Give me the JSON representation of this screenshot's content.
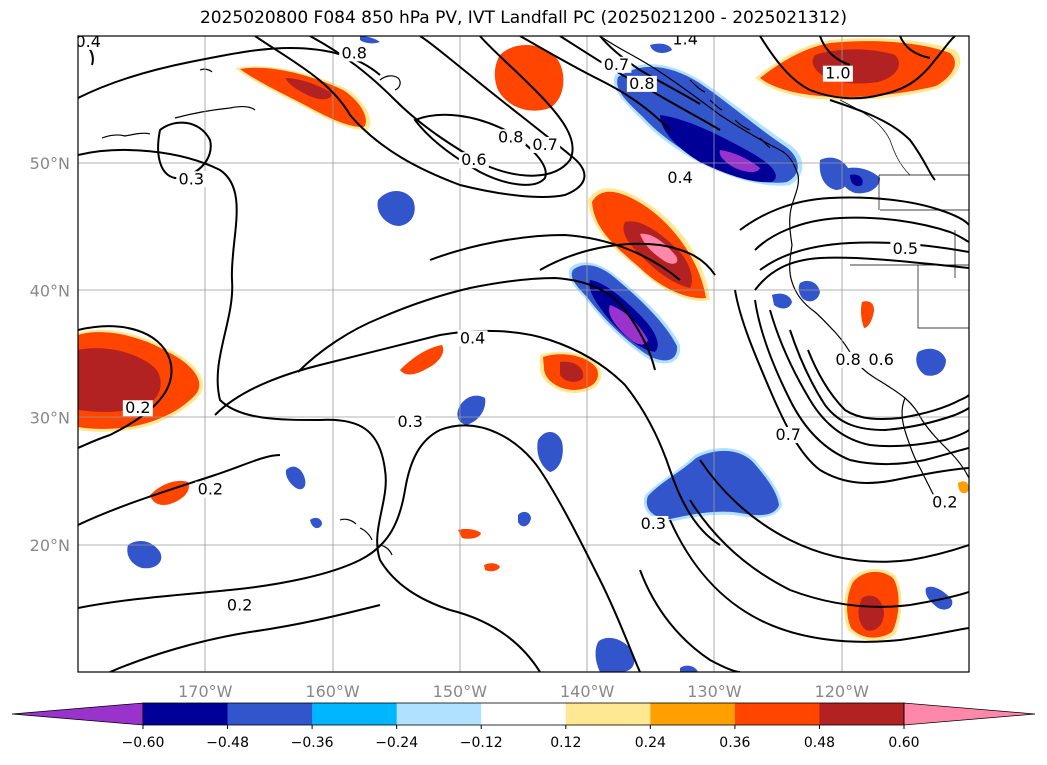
{
  "title": "2025020800 F084 850 hPa PV, IVT Landfall PC (2025021200 - 2025021312)",
  "map": {
    "projection": "lat-lon",
    "lon_range": [
      -180,
      -110
    ],
    "lat_range": [
      10,
      60
    ],
    "gridlines": true,
    "lon_ticks": [
      {
        "lon": -170,
        "label": "170°W"
      },
      {
        "lon": -160,
        "label": "160°W"
      },
      {
        "lon": -150,
        "label": "150°W"
      },
      {
        "lon": -140,
        "label": "140°W"
      },
      {
        "lon": -130,
        "label": "130°W"
      },
      {
        "lon": -120,
        "label": "120°W"
      }
    ],
    "lat_ticks": [
      {
        "lat": 50,
        "label": "50°N"
      },
      {
        "lat": 40,
        "label": "40°N"
      },
      {
        "lat": 30,
        "label": "30°N"
      },
      {
        "lat": 20,
        "label": "20°N"
      }
    ],
    "contour_labels": [
      {
        "text": "0.4",
        "lon": -179.2,
        "lat": 59.3
      },
      {
        "text": "0.8",
        "lon": -158.3,
        "lat": 58.4
      },
      {
        "text": "1.4",
        "lon": -132.3,
        "lat": 59.5
      },
      {
        "text": "0.7",
        "lon": -137.7,
        "lat": 57.5
      },
      {
        "text": "0.8",
        "lon": -135.7,
        "lat": 56.0
      },
      {
        "text": "1.0",
        "lon": -120.3,
        "lat": 56.8
      },
      {
        "text": "0.8",
        "lon": -146.0,
        "lat": 51.8
      },
      {
        "text": "0.7",
        "lon": -143.3,
        "lat": 51.2
      },
      {
        "text": "0.6",
        "lon": -148.9,
        "lat": 50.0
      },
      {
        "text": "0.3",
        "lon": -171.1,
        "lat": 48.5
      },
      {
        "text": "0.4",
        "lon": -132.7,
        "lat": 48.6
      },
      {
        "text": "0.5",
        "lon": -115.0,
        "lat": 43.0
      },
      {
        "text": "0.4",
        "lon": -149.0,
        "lat": 36.0
      },
      {
        "text": "0.8",
        "lon": -119.5,
        "lat": 34.3
      },
      {
        "text": "0.6",
        "lon": -116.9,
        "lat": 34.3
      },
      {
        "text": "0.3",
        "lon": -153.9,
        "lat": 29.4
      },
      {
        "text": "0.2",
        "lon": -175.3,
        "lat": 30.5
      },
      {
        "text": "0.7",
        "lon": -124.2,
        "lat": 28.4
      },
      {
        "text": "0.2",
        "lon": -169.6,
        "lat": 24.1
      },
      {
        "text": "0.3",
        "lon": -134.8,
        "lat": 21.4
      },
      {
        "text": "0.2",
        "lon": -111.9,
        "lat": 23.1
      },
      {
        "text": "0.2",
        "lon": -167.3,
        "lat": 15.0
      }
    ]
  },
  "colorbar": {
    "colors": [
      "#9933cc",
      "#000099",
      "#3355cc",
      "#00b7ff",
      "#b0e2ff",
      "#ffffff",
      "#ffe891",
      "#ffa000",
      "#ff4500",
      "#b22222",
      "#ff88aa"
    ],
    "tick_labels": [
      "−0.60",
      "−0.48",
      "−0.36",
      "−0.24",
      "−0.12",
      "0.12",
      "0.24",
      "0.36",
      "0.48",
      "0.60"
    ],
    "extend": "both"
  }
}
